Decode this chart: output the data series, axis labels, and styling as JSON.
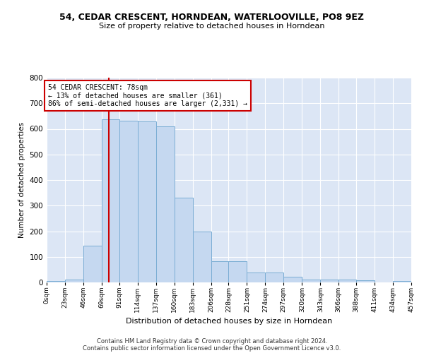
{
  "title": "54, CEDAR CRESCENT, HORNDEAN, WATERLOOVILLE, PO8 9EZ",
  "subtitle": "Size of property relative to detached houses in Horndean",
  "xlabel": "Distribution of detached houses by size in Horndean",
  "ylabel": "Number of detached properties",
  "bar_color": "#c5d8f0",
  "bar_edge_color": "#7aadd4",
  "background_color": "#dce6f5",
  "grid_color": "#ffffff",
  "annotation_line_color": "#cc0000",
  "annotation_box_color": "#cc0000",
  "annotation_text": "54 CEDAR CRESCENT: 78sqm\n← 13% of detached houses are smaller (361)\n86% of semi-detached houses are larger (2,331) →",
  "property_sqm": 78,
  "footer1": "Contains HM Land Registry data © Crown copyright and database right 2024.",
  "footer2": "Contains public sector information licensed under the Open Government Licence v3.0.",
  "bin_edges": [
    0,
    23,
    46,
    69,
    91,
    114,
    137,
    160,
    183,
    206,
    228,
    251,
    274,
    297,
    320,
    343,
    366,
    388,
    411,
    434,
    457
  ],
  "bin_labels": [
    "0sqm",
    "23sqm",
    "46sqm",
    "69sqm",
    "91sqm",
    "114sqm",
    "137sqm",
    "160sqm",
    "183sqm",
    "206sqm",
    "228sqm",
    "251sqm",
    "274sqm",
    "297sqm",
    "320sqm",
    "343sqm",
    "366sqm",
    "388sqm",
    "411sqm",
    "434sqm",
    "457sqm"
  ],
  "counts": [
    5,
    10,
    143,
    637,
    633,
    630,
    610,
    330,
    200,
    83,
    83,
    40,
    40,
    23,
    12,
    12,
    10,
    9,
    0,
    5
  ],
  "ylim": [
    0,
    800
  ],
  "yticks": [
    0,
    100,
    200,
    300,
    400,
    500,
    600,
    700,
    800
  ]
}
